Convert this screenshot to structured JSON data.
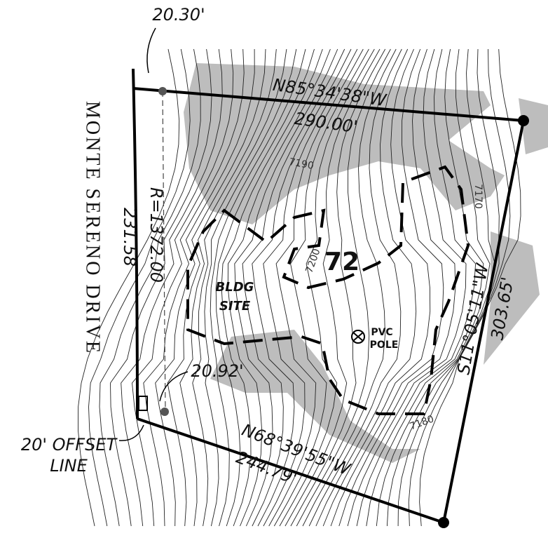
{
  "dimensions": {
    "offset_north": "20.30'",
    "offset_south": "20.92'"
  },
  "boundaries": {
    "north": {
      "bearing": "N85°34'38\"W",
      "distance": "290.00'"
    },
    "east": {
      "bearing": "S11°05'11\"W",
      "distance": "303.65'"
    },
    "south": {
      "bearing": "N68°39'55\"W",
      "distance": "244.79'"
    },
    "west": {
      "radius": "R=1372.00",
      "distance": "231.58"
    }
  },
  "contour_labels": [
    "7190",
    "7170",
    "7200",
    "7180"
  ],
  "lot_number": "72",
  "street_name": "MONTE SERENO DRIVE",
  "building_site": [
    "BLDG",
    "SITE"
  ],
  "pvc_pole": [
    "PVC",
    "POLE"
  ],
  "offset_line": [
    "20' OFFSET",
    "LINE"
  ]
}
